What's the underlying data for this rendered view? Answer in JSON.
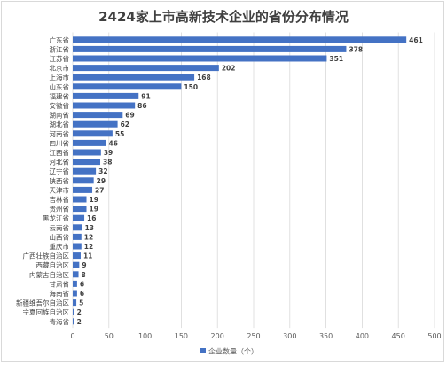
{
  "chart_data": {
    "type": "bar",
    "orientation": "horizontal",
    "title": "2424家上市高新技术企业的省份分布情况",
    "xlabel": "",
    "ylabel": "",
    "xlim": [
      0,
      500
    ],
    "xticks": [
      0,
      50,
      100,
      150,
      200,
      250,
      300,
      350,
      400,
      450,
      500
    ],
    "grid": "vertical",
    "legend_position": "bottom",
    "bar_color": "#4472C4",
    "categories": [
      "广东省",
      "浙江省",
      "江苏省",
      "北京市",
      "上海市",
      "山东省",
      "福建省",
      "安徽省",
      "湖南省",
      "湖北省",
      "河南省",
      "四川省",
      "江西省",
      "河北省",
      "辽宁省",
      "陕西省",
      "天津市",
      "吉林省",
      "贵州省",
      "黑龙江省",
      "云南省",
      "山西省",
      "重庆市",
      "广西壮族自治区",
      "西藏自治区",
      "内蒙古自治区",
      "甘肃省",
      "海南省",
      "新疆维吾尔自治区",
      "宁夏回族自治区",
      "青海省"
    ],
    "series": [
      {
        "name": "企业数量（个）",
        "values": [
          461,
          378,
          351,
          202,
          168,
          150,
          91,
          86,
          69,
          62,
          55,
          46,
          39,
          38,
          32,
          29,
          27,
          19,
          19,
          16,
          13,
          12,
          12,
          11,
          9,
          8,
          6,
          6,
          5,
          2,
          2
        ]
      }
    ]
  }
}
